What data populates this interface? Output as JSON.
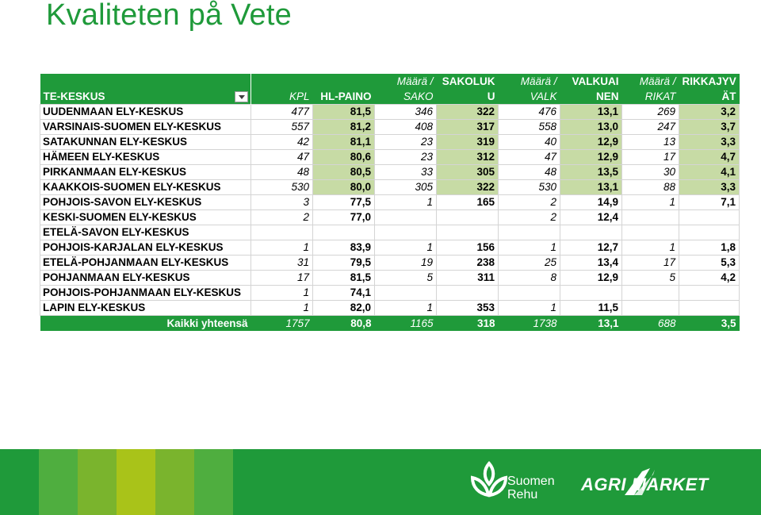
{
  "title": "Kvaliteten på Vete",
  "table": {
    "header_row1": [
      "",
      "",
      "",
      "Määrä  /",
      "SAKOLUK",
      "Määrä  /",
      "VALKUAI",
      "Määrä  /",
      "RIKKAJYV"
    ],
    "header_row2": [
      "TE-KESKUS",
      "KPL",
      "HL-PAINO",
      "SAKO",
      "U",
      "VALK",
      "NEN",
      "RIKAT",
      "ÄT"
    ],
    "rows": [
      [
        "UUDENMAAN ELY-KESKUS",
        "477",
        "81,5",
        "346",
        "322",
        "476",
        "13,1",
        "269",
        "3,2"
      ],
      [
        "VARSINAIS-SUOMEN ELY-KESKUS",
        "557",
        "81,2",
        "408",
        "317",
        "558",
        "13,0",
        "247",
        "3,7"
      ],
      [
        "SATAKUNNAN ELY-KESKUS",
        "42",
        "81,1",
        "23",
        "319",
        "40",
        "12,9",
        "13",
        "3,3"
      ],
      [
        "HÄMEEN ELY-KESKUS",
        "47",
        "80,6",
        "23",
        "312",
        "47",
        "12,9",
        "17",
        "4,7"
      ],
      [
        "PIRKANMAAN ELY-KESKUS",
        "48",
        "80,5",
        "33",
        "305",
        "48",
        "13,5",
        "30",
        "4,1"
      ],
      [
        "KAAKKOIS-SUOMEN ELY-KESKUS",
        "530",
        "80,0",
        "305",
        "322",
        "530",
        "13,1",
        "88",
        "3,3"
      ],
      [
        "POHJOIS-SAVON ELY-KESKUS",
        "3",
        "77,5",
        "1",
        "165",
        "2",
        "14,9",
        "1",
        "7,1"
      ],
      [
        "KESKI-SUOMEN ELY-KESKUS",
        "2",
        "77,0",
        "",
        "",
        "2",
        "12,4",
        "",
        ""
      ],
      [
        "ETELÄ-SAVON ELY-KESKUS",
        "",
        "",
        "",
        "",
        "",
        "",
        "",
        ""
      ],
      [
        "POHJOIS-KARJALAN ELY-KESKUS",
        "1",
        "83,9",
        "1",
        "156",
        "1",
        "12,7",
        "1",
        "1,8"
      ],
      [
        "ETELÄ-POHJANMAAN ELY-KESKUS",
        "31",
        "79,5",
        "19",
        "238",
        "25",
        "13,4",
        "17",
        "5,3"
      ],
      [
        "POHJANMAAN ELY-KESKUS",
        "17",
        "81,5",
        "5",
        "311",
        "8",
        "12,9",
        "5",
        "4,2"
      ],
      [
        "POHJOIS-POHJANMAAN ELY-KESKUS",
        "1",
        "74,1",
        "",
        "",
        "",
        "",
        "",
        ""
      ],
      [
        "LAPIN ELY-KESKUS",
        "1",
        "82,0",
        "1",
        "353",
        "1",
        "11,5",
        "",
        ""
      ]
    ],
    "total": [
      "Kaikki yhteensä",
      "1757",
      "80,8",
      "1165",
      "318",
      "1738",
      "13,1",
      "688",
      "3,5"
    ]
  },
  "footer": {
    "brand1_line1": "Suomen",
    "brand1_line2": "Rehu",
    "brand2": "AGRI MARKET"
  },
  "colors": {
    "brand_green": "#1f9a3a",
    "highlight_green": "#c7dba5"
  }
}
